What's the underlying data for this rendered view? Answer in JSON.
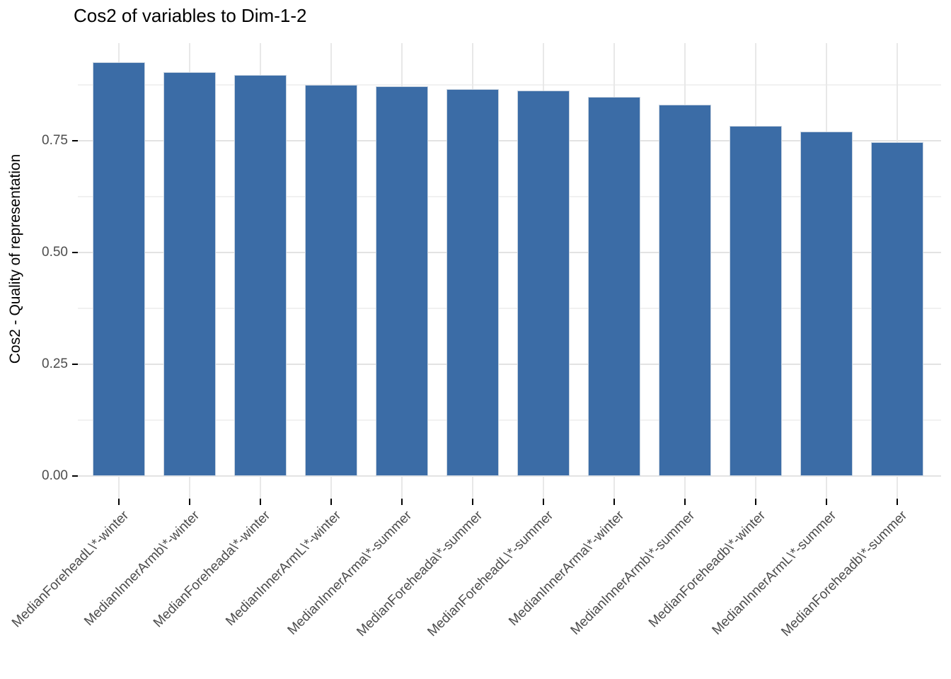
{
  "chart_data": {
    "type": "bar",
    "title": "Cos2 of variables to Dim-1-2",
    "xlabel": "",
    "ylabel": "Cos2 - Quality of representation",
    "categories": [
      "MedianForeheadL\\*-winter",
      "MedianInnerArmb\\*-winter",
      "MedianForeheada\\*-winter",
      "MedianInnerArmL\\*-winter",
      "MedianInnerArma\\*-summer",
      "MedianForeheada\\*-summer",
      "MedianForeheadL\\*-summer",
      "MedianInnerArma\\*-winter",
      "MedianInnerArmb\\*-summer",
      "MedianForeheadb\\*-winter",
      "MedianInnerArmL\\*-summer",
      "MedianForeheadb\\*-summer"
    ],
    "values": [
      0.926,
      0.903,
      0.897,
      0.875,
      0.872,
      0.866,
      0.863,
      0.848,
      0.831,
      0.784,
      0.771,
      0.747
    ],
    "ylim": [
      -0.05,
      0.968
    ],
    "y_major_ticks": [
      0.0,
      0.25,
      0.5,
      0.75
    ],
    "y_major_tick_labels": [
      "0.00",
      "0.25",
      "0.50",
      "0.75"
    ],
    "y_minor_ticks": [
      0.125,
      0.375,
      0.625,
      0.875
    ],
    "x_tick_angle": 45,
    "grid": true,
    "legend_position": "none",
    "style": {
      "bar_fill": "#3B6CA6",
      "bar_border": "#C7D3E0",
      "grid_major": "#E3E3E3",
      "grid_minor": "#F1F1F1",
      "grid_vertical": "#E8E8E8",
      "tick_color": "#000000",
      "axis_text_color": "#4d4d4d",
      "title_color": "#000000",
      "background": "#ffffff"
    }
  }
}
